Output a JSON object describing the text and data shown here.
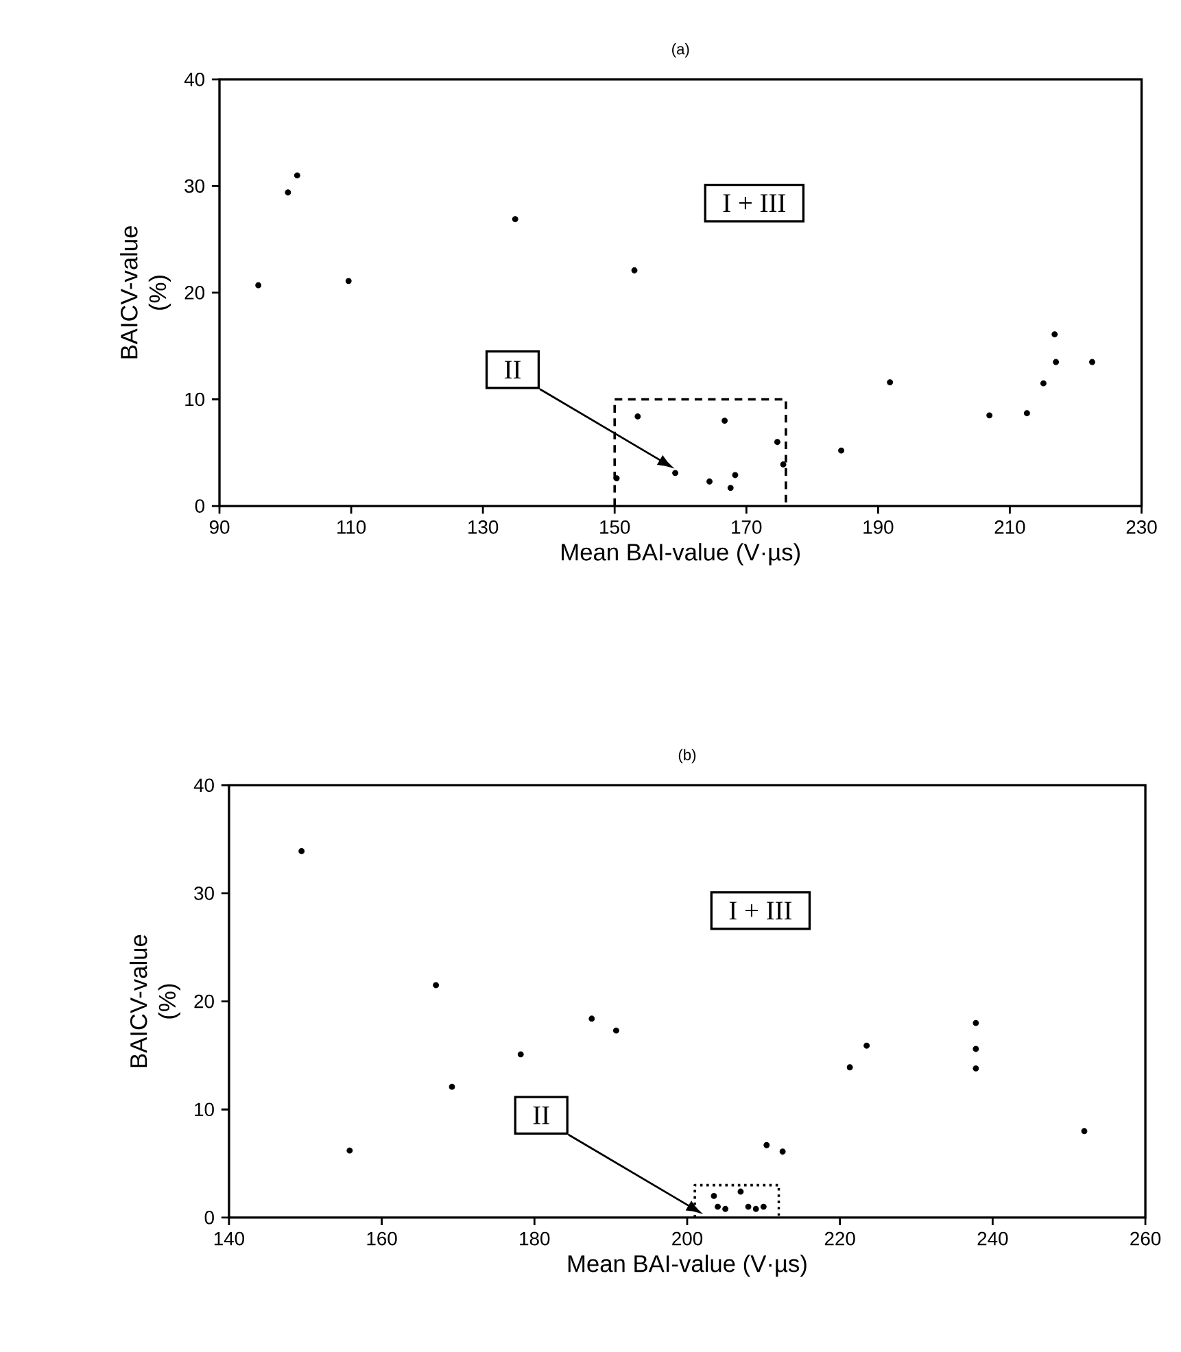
{
  "chart_data": [
    {
      "type": "scatter",
      "title": "(a)",
      "xlabel": "Mean BAI-value (V·µs)",
      "ylabel": "BAICV-value (%)",
      "xlim": [
        90,
        230
      ],
      "ylim": [
        0,
        40
      ],
      "xticks": [
        90,
        110,
        130,
        150,
        170,
        190,
        210,
        230
      ],
      "yticks": [
        0,
        10,
        20,
        30,
        40
      ],
      "grid": false,
      "series": [
        {
          "marker": "circle",
          "color": "#000000",
          "x": [
            95.9,
            100.4,
            101.8,
            109.6,
            134.9,
            153.0,
            153.5,
            150.3,
            159.2,
            164.4,
            166.7,
            168.3,
            167.6,
            174.7,
            175.6,
            184.4,
            191.8,
            206.9,
            212.6,
            215.1,
            217.0,
            216.8,
            222.5
          ],
          "values": [
            20.7,
            29.4,
            31.0,
            21.1,
            26.9,
            22.1,
            8.4,
            2.6,
            3.1,
            2.3,
            8.0,
            2.9,
            1.7,
            6.0,
            3.9,
            5.2,
            11.6,
            8.5,
            8.7,
            11.5,
            13.5,
            16.1,
            13.5
          ]
        },
        {
          "type": "line",
          "marker": "none",
          "color": "#000000",
          "line_style": "dashed",
          "x": [
            150,
            150,
            176,
            176
          ],
          "values": [
            0,
            10,
            10,
            0
          ]
        }
      ],
      "annotations": [
        "II",
        "I + III"
      ]
    },
    {
      "type": "scatter",
      "title": "(b)",
      "xlabel": "Mean BAI-value (V·µs)",
      "ylabel": "BAICV-value (%)",
      "xlim": [
        140,
        260
      ],
      "ylim": [
        0,
        40
      ],
      "xticks": [
        140,
        160,
        180,
        200,
        220,
        240,
        260
      ],
      "yticks": [
        0,
        10,
        20,
        30,
        40
      ],
      "grid": false,
      "series": [
        {
          "marker": "circle",
          "color": "#000000",
          "x": [
            149.5,
            155.8,
            167.1,
            169.2,
            178.2,
            187.5,
            190.7,
            203.5,
            204,
            205,
            207,
            208,
            209,
            210,
            210.4,
            212.5,
            221.3,
            223.5,
            237.8,
            237.8,
            237.8,
            252
          ],
          "values": [
            33.9,
            6.2,
            21.5,
            12.1,
            15.1,
            18.4,
            17.3,
            2.0,
            1.0,
            0.8,
            2.4,
            1.0,
            0.8,
            1.0,
            6.7,
            6.1,
            13.9,
            15.9,
            18.0,
            15.6,
            13.8,
            8.0
          ]
        },
        {
          "type": "line",
          "marker": "none",
          "color": "#000000",
          "line_style": "dotted",
          "x": [
            201,
            201,
            212,
            212
          ],
          "values": [
            0,
            3,
            3,
            0
          ]
        }
      ],
      "annotations": [
        "II",
        "I + III"
      ]
    }
  ]
}
